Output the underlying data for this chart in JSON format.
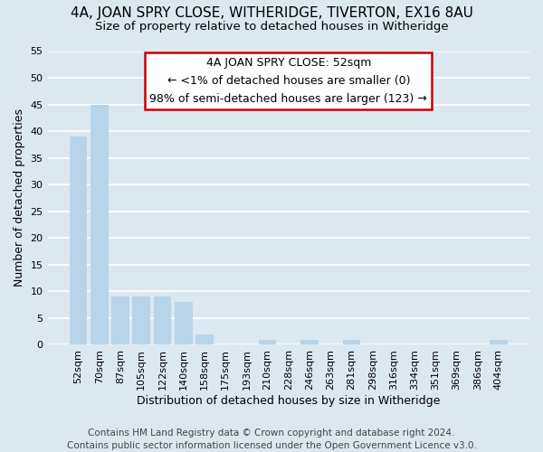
{
  "title": "4A, JOAN SPRY CLOSE, WITHERIDGE, TIVERTON, EX16 8AU",
  "subtitle": "Size of property relative to detached houses in Witheridge",
  "xlabel": "Distribution of detached houses by size in Witheridge",
  "ylabel": "Number of detached properties",
  "bin_labels": [
    "52sqm",
    "70sqm",
    "87sqm",
    "105sqm",
    "122sqm",
    "140sqm",
    "158sqm",
    "175sqm",
    "193sqm",
    "210sqm",
    "228sqm",
    "246sqm",
    "263sqm",
    "281sqm",
    "298sqm",
    "316sqm",
    "334sqm",
    "351sqm",
    "369sqm",
    "386sqm",
    "404sqm"
  ],
  "bar_values": [
    39,
    45,
    9,
    9,
    9,
    8,
    2,
    0,
    0,
    1,
    0,
    1,
    0,
    1,
    0,
    0,
    0,
    0,
    0,
    0,
    1
  ],
  "bar_color": "#b8d4e8",
  "highlight_bar_index": 0,
  "highlight_color": "#b8d4e8",
  "ylim": [
    0,
    55
  ],
  "yticks": [
    0,
    5,
    10,
    15,
    20,
    25,
    30,
    35,
    40,
    45,
    50,
    55
  ],
  "annotation_title": "4A JOAN SPRY CLOSE: 52sqm",
  "annotation_line1": "← <1% of detached houses are smaller (0)",
  "annotation_line2": "98% of semi-detached houses are larger (123) →",
  "annotation_box_color": "#ffffff",
  "annotation_box_edge": "#cc0000",
  "footer_line1": "Contains HM Land Registry data © Crown copyright and database right 2024.",
  "footer_line2": "Contains public sector information licensed under the Open Government Licence v3.0.",
  "background_color": "#dce8f0",
  "plot_background": "#dce8f0",
  "grid_color": "#ffffff",
  "title_fontsize": 11,
  "subtitle_fontsize": 9.5,
  "xlabel_fontsize": 9,
  "ylabel_fontsize": 9,
  "tick_fontsize": 8,
  "footer_fontsize": 7.5
}
